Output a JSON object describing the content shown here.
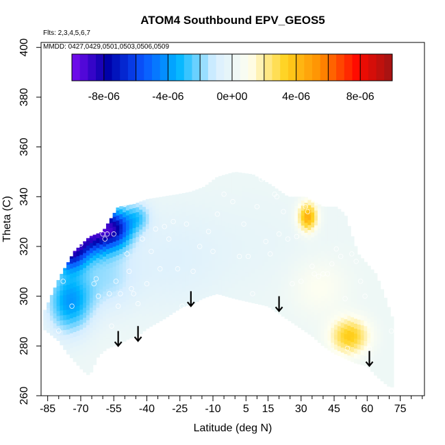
{
  "chart_data": {
    "type": "heatmap",
    "title": "ATOM4 Southbound EPV_GEOS5",
    "flights_label": "Flts: 2,3,4,5,6,7",
    "mmdd_label": "MMDD: 0427,0429,0501,0503,0506,0509",
    "xlabel": "Latitude (deg N)",
    "ylabel": "Theta (C)",
    "xlim": [
      -88,
      86
    ],
    "ylim": [
      260,
      402
    ],
    "x_ticks": [
      -85,
      -70,
      -55,
      -40,
      -25,
      -10,
      5,
      15,
      30,
      45,
      60,
      75
    ],
    "x_tick_labels": [
      "-85",
      "-70",
      "-55",
      "-40",
      "-25",
      "-10",
      "5",
      "15",
      "30",
      "45",
      "60",
      "75"
    ],
    "x_minor_ticks": [
      -80,
      -75,
      -65,
      -60,
      -50,
      -45,
      -35,
      -30,
      -20,
      -15,
      -5,
      0,
      10,
      20,
      25,
      35,
      40,
      50,
      55,
      65,
      70,
      80,
      85
    ],
    "y_ticks": [
      260,
      280,
      300,
      320,
      340,
      360,
      380,
      400
    ],
    "y_tick_labels": [
      "260",
      "280",
      "300",
      "320",
      "340",
      "360",
      "380",
      "400"
    ],
    "colorbar": {
      "range": [
        -1e-05,
        1e-05
      ],
      "bins": 10,
      "colors": [
        "#7a0cf0",
        "#0000a8",
        "#0a55ff",
        "#00b6ff",
        "#d7eeff",
        "#fffff0",
        "#ffd21e",
        "#ff8c00",
        "#ff0a00",
        "#9e1414"
      ],
      "tick_values": [
        -8e-06,
        -4e-06,
        0,
        4e-06,
        8e-06
      ],
      "tick_labels": [
        "-8e-06",
        "-4e-06",
        "0e+00",
        "4e-06",
        "8e-06"
      ]
    },
    "theta_top_profile": {
      "lat": [
        -87,
        -80,
        -73,
        -66,
        -60,
        -53,
        -46,
        -40,
        -33,
        -26,
        -20,
        -14,
        -8,
        0,
        8,
        16,
        24,
        32,
        40,
        46,
        50,
        54,
        56
      ],
      "theta": [
        293,
        307,
        318,
        324,
        326,
        336,
        337,
        339,
        340,
        341,
        342,
        344,
        348,
        350,
        349,
        345,
        340,
        340,
        336,
        336,
        333,
        322,
        317
      ]
    },
    "theta_top_profile_2": {
      "lat": [
        56,
        60,
        64,
        68,
        72
      ],
      "theta": [
        317,
        313,
        309,
        300,
        290
      ]
    },
    "theta_bottom_profile": {
      "lat": [
        -87,
        -80,
        -76,
        -72,
        -69,
        -66,
        -62,
        -58,
        -55,
        -52,
        -48,
        -44,
        -40,
        -36,
        -32,
        -27,
        -23,
        -19,
        -15,
        -12,
        -8,
        -4,
        0,
        5,
        10,
        15,
        20,
        25,
        30,
        35,
        40,
        45,
        50,
        55,
        60,
        64,
        68,
        71,
        72
      ],
      "theta": [
        287,
        282,
        277,
        273,
        270,
        268,
        276,
        279,
        280,
        281,
        283,
        284,
        287,
        289,
        291,
        294,
        296,
        297,
        299,
        300,
        301,
        300,
        299,
        298,
        297,
        296,
        293,
        290,
        287,
        284,
        280,
        277,
        275,
        273,
        272,
        268,
        265,
        263,
        265
      ]
    },
    "epv_anomalies": [
      {
        "lat": -66,
        "theta": 326,
        "sigma_lat": 9,
        "sigma_theta": 6,
        "amp": -8.8e-06
      },
      {
        "lat": -75,
        "theta": 318,
        "sigma_lat": 5,
        "sigma_theta": 5,
        "amp": -6.5e-06
      },
      {
        "lat": -54,
        "theta": 328,
        "sigma_lat": 5,
        "sigma_theta": 5,
        "amp": -4.5e-06
      },
      {
        "lat": -44,
        "theta": 332,
        "sigma_lat": 4,
        "sigma_theta": 4,
        "amp": -2.2e-06
      },
      {
        "lat": -75,
        "theta": 298,
        "sigma_lat": 7,
        "sigma_theta": 9,
        "amp": -4e-06
      },
      {
        "lat": -58,
        "theta": 307,
        "sigma_lat": 9,
        "sigma_theta": 9,
        "amp": -1.5e-06
      },
      {
        "lat": -30,
        "theta": 315,
        "sigma_lat": 18,
        "sigma_theta": 15,
        "amp": -8e-07
      },
      {
        "lat": 33,
        "theta": 332,
        "sigma_lat": 3,
        "sigma_theta": 4,
        "amp": 4.5e-06
      },
      {
        "lat": 52,
        "theta": 284,
        "sigma_lat": 6,
        "sigma_theta": 5,
        "amp": 3.4e-06
      },
      {
        "lat": 38,
        "theta": 304,
        "sigma_lat": 9,
        "sigma_theta": 8,
        "amp": 9e-07
      },
      {
        "lat": 12,
        "theta": 322,
        "sigma_lat": 20,
        "sigma_theta": 15,
        "amp": -3e-07
      }
    ],
    "observation_points": [
      {
        "lat": -82,
        "theta": 320
      },
      {
        "lat": -80,
        "theta": 286
      },
      {
        "lat": -78,
        "theta": 306
      },
      {
        "lat": -74,
        "theta": 296
      },
      {
        "lat": -72,
        "theta": 322
      },
      {
        "lat": -70,
        "theta": 321
      },
      {
        "lat": -68,
        "theta": 329
      },
      {
        "lat": -67,
        "theta": 331
      },
      {
        "lat": -66,
        "theta": 326
      },
      {
        "lat": -65,
        "theta": 330
      },
      {
        "lat": -64,
        "theta": 305
      },
      {
        "lat": -63,
        "theta": 307
      },
      {
        "lat": -62,
        "theta": 300
      },
      {
        "lat": -61,
        "theta": 330
      },
      {
        "lat": -60,
        "theta": 325
      },
      {
        "lat": -59,
        "theta": 323
      },
      {
        "lat": -58,
        "theta": 325
      },
      {
        "lat": -57,
        "theta": 301
      },
      {
        "lat": -56,
        "theta": 288
      },
      {
        "lat": -55,
        "theta": 325
      },
      {
        "lat": -54,
        "theta": 306
      },
      {
        "lat": -53,
        "theta": 296
      },
      {
        "lat": -52,
        "theta": 301
      },
      {
        "lat": -50,
        "theta": 337
      },
      {
        "lat": -49,
        "theta": 317
      },
      {
        "lat": -48,
        "theta": 310
      },
      {
        "lat": -47,
        "theta": 303
      },
      {
        "lat": -46,
        "theta": 301
      },
      {
        "lat": -44,
        "theta": 297
      },
      {
        "lat": -42,
        "theta": 323
      },
      {
        "lat": -40,
        "theta": 305
      },
      {
        "lat": -38,
        "theta": 318
      },
      {
        "lat": -36,
        "theta": 327
      },
      {
        "lat": -34,
        "theta": 311
      },
      {
        "lat": -32,
        "theta": 328
      },
      {
        "lat": -30,
        "theta": 323
      },
      {
        "lat": -28,
        "theta": 330
      },
      {
        "lat": -26,
        "theta": 311
      },
      {
        "lat": -24,
        "theta": 296
      },
      {
        "lat": -22,
        "theta": 329
      },
      {
        "lat": -19,
        "theta": 310
      },
      {
        "lat": -16,
        "theta": 320
      },
      {
        "lat": -12,
        "theta": 326
      },
      {
        "lat": -10,
        "theta": 318
      },
      {
        "lat": -8,
        "theta": 333
      },
      {
        "lat": -5,
        "theta": 341
      },
      {
        "lat": -1,
        "theta": 338
      },
      {
        "lat": 2,
        "theta": 316
      },
      {
        "lat": 4,
        "theta": 329
      },
      {
        "lat": 6,
        "theta": 316
      },
      {
        "lat": 8,
        "theta": 301
      },
      {
        "lat": 10,
        "theta": 336
      },
      {
        "lat": 12,
        "theta": 347
      },
      {
        "lat": 14,
        "theta": 322
      },
      {
        "lat": 16,
        "theta": 317
      },
      {
        "lat": 18,
        "theta": 341
      },
      {
        "lat": 19,
        "theta": 340
      },
      {
        "lat": 20,
        "theta": 325
      },
      {
        "lat": 22,
        "theta": 334
      },
      {
        "lat": 24,
        "theta": 323
      },
      {
        "lat": 26,
        "theta": 305
      },
      {
        "lat": 28,
        "theta": 324
      },
      {
        "lat": 30,
        "theta": 306
      },
      {
        "lat": 32,
        "theta": 336
      },
      {
        "lat": 33,
        "theta": 334
      },
      {
        "lat": 35,
        "theta": 312
      },
      {
        "lat": 36,
        "theta": 309
      },
      {
        "lat": 38,
        "theta": 308
      },
      {
        "lat": 40,
        "theta": 309
      },
      {
        "lat": 42,
        "theta": 309
      },
      {
        "lat": 44,
        "theta": 313
      },
      {
        "lat": 46,
        "theta": 319
      },
      {
        "lat": 48,
        "theta": 316
      },
      {
        "lat": 50,
        "theta": 299
      },
      {
        "lat": 51,
        "theta": 279
      },
      {
        "lat": 53,
        "theta": 317
      },
      {
        "lat": 55,
        "theta": 314
      },
      {
        "lat": 57,
        "theta": 306
      },
      {
        "lat": 59,
        "theta": 300
      },
      {
        "lat": 61,
        "theta": 279
      },
      {
        "lat": 66,
        "theta": 315
      },
      {
        "lat": 68,
        "theta": 308
      },
      {
        "lat": 71,
        "theta": 286
      }
    ],
    "descent_arrows": [
      {
        "lat": -53,
        "theta_start": 286,
        "theta_end": 280
      },
      {
        "lat": -44,
        "theta_start": 288,
        "theta_end": 282
      },
      {
        "lat": -20,
        "theta_start": 302,
        "theta_end": 296
      },
      {
        "lat": 20,
        "theta_start": 300,
        "theta_end": 294
      },
      {
        "lat": 61,
        "theta_start": 278,
        "theta_end": 272
      }
    ]
  }
}
